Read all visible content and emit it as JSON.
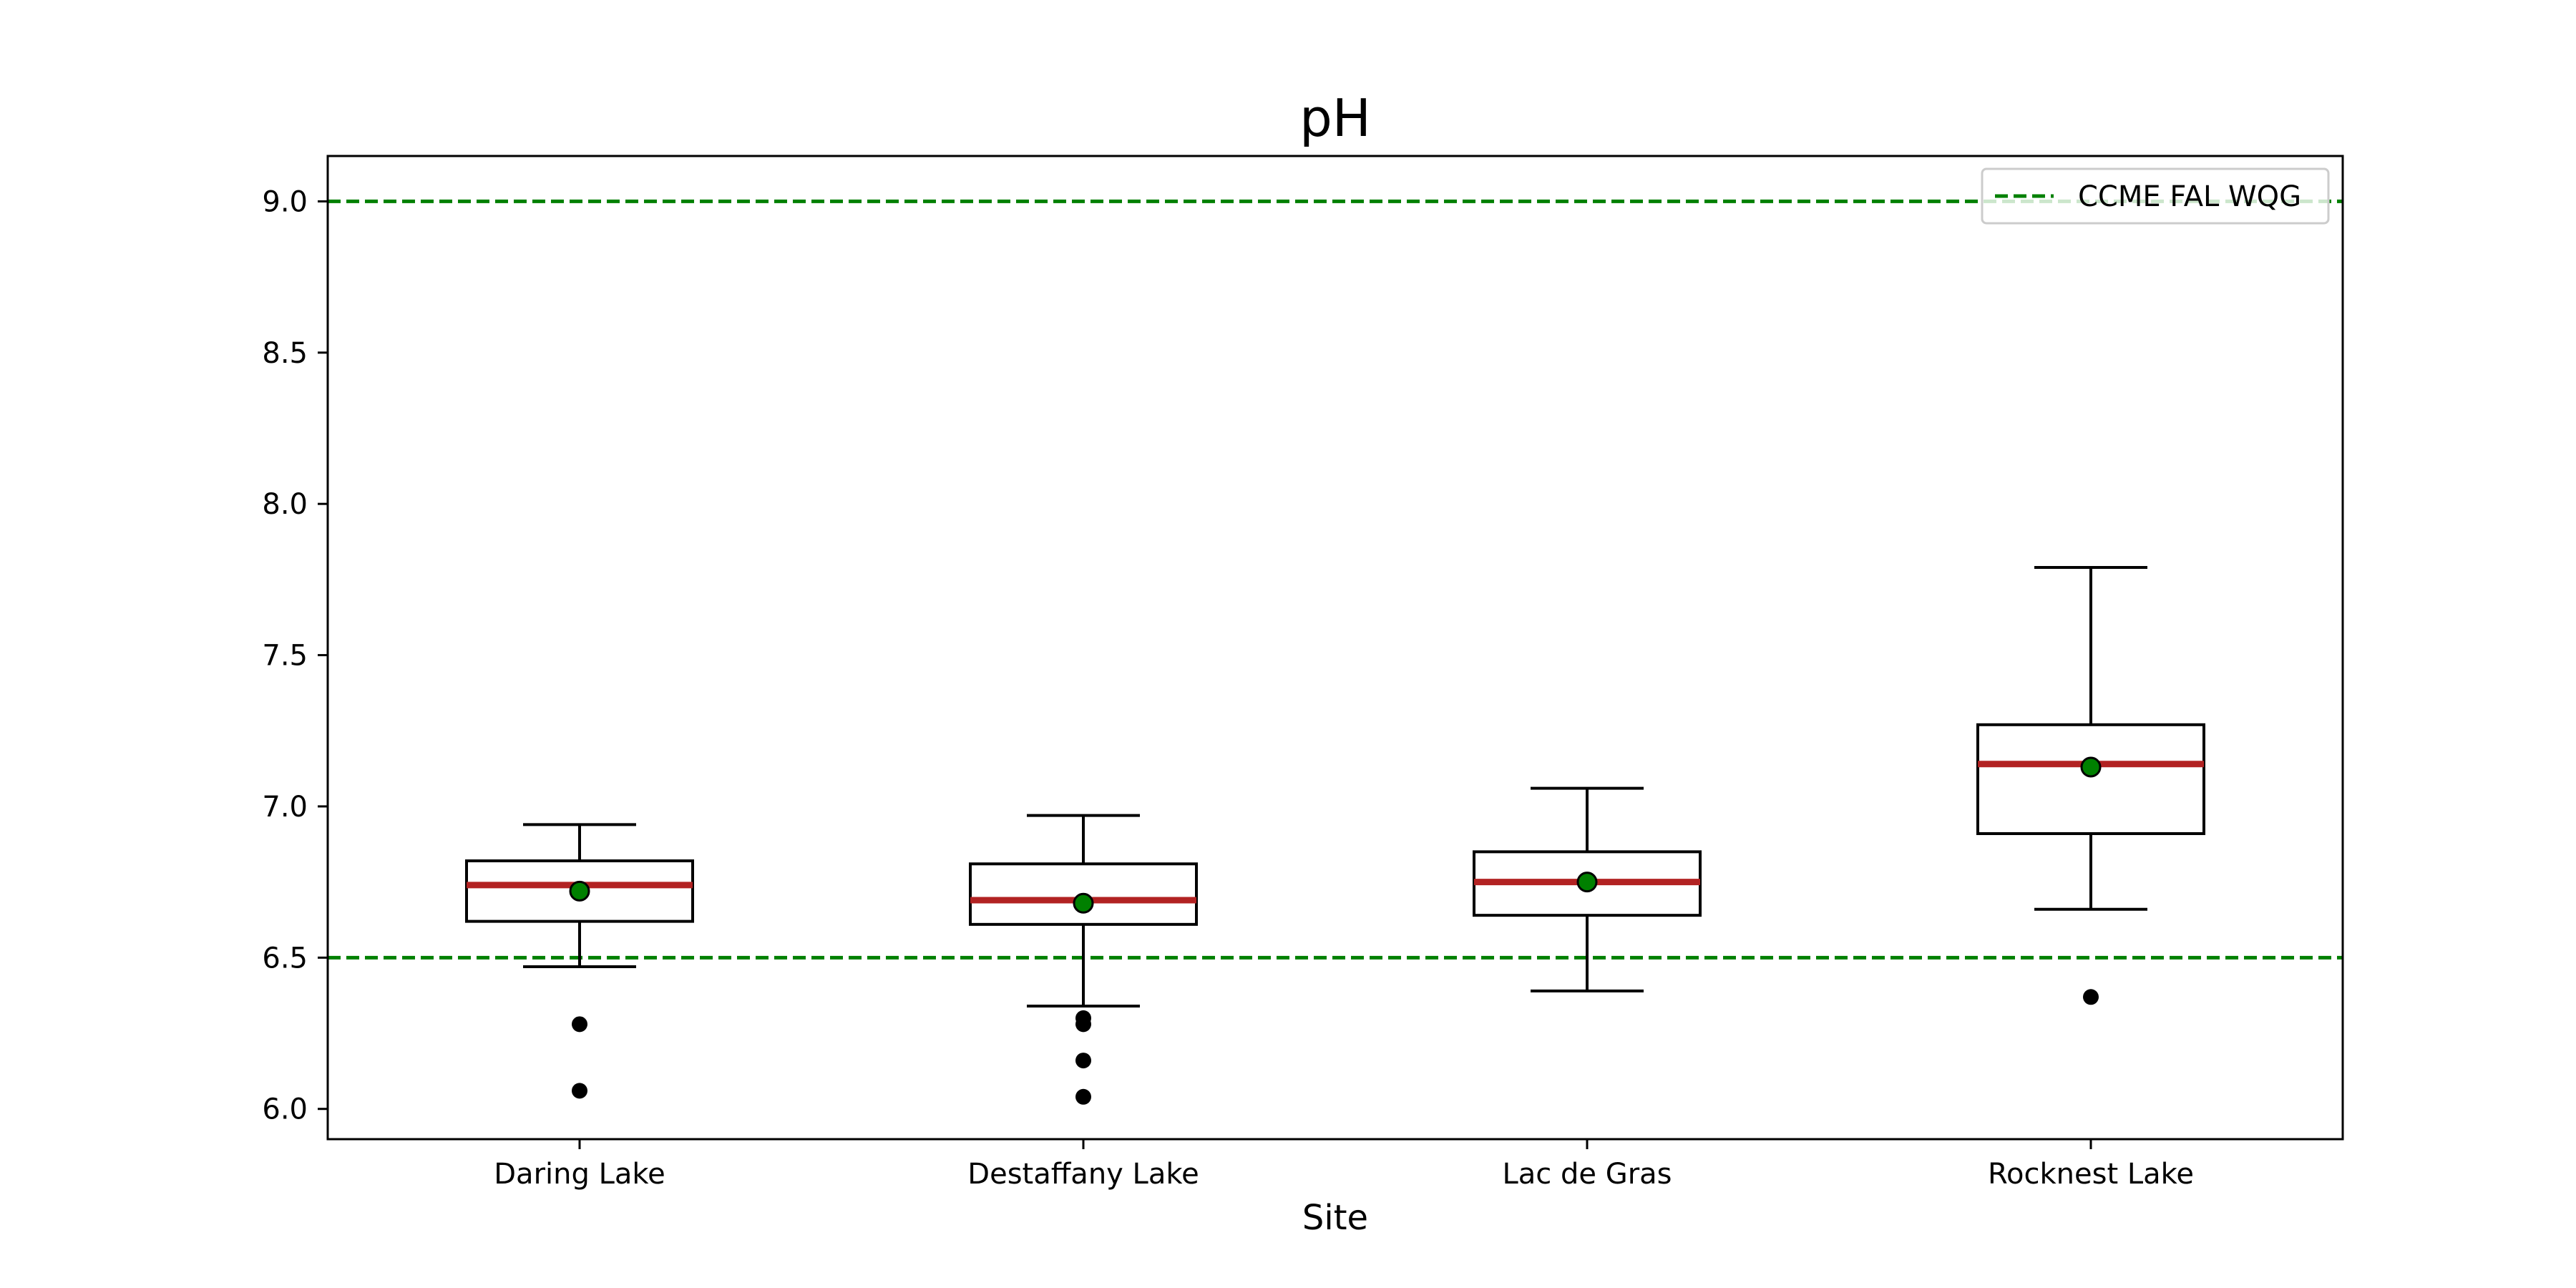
{
  "chart_data": {
    "type": "box",
    "title": "pH",
    "xlabel": "Site",
    "ylabel": "",
    "ylim": [
      5.9,
      9.15
    ],
    "yticks": [
      "6.0",
      "6.5",
      "7.0",
      "7.5",
      "8.0",
      "8.5",
      "9.0"
    ],
    "categories": [
      "Daring Lake",
      "Destaffany Lake",
      "Lac de Gras",
      "Rocknest Lake"
    ],
    "boxes": [
      {
        "category": "Daring Lake",
        "whisker_low": 6.47,
        "q1": 6.62,
        "median": 6.74,
        "q3": 6.82,
        "whisker_high": 6.94,
        "mean": 6.72,
        "outliers": [
          6.28,
          6.06
        ]
      },
      {
        "category": "Destaffany Lake",
        "whisker_low": 6.34,
        "q1": 6.61,
        "median": 6.69,
        "q3": 6.81,
        "whisker_high": 6.97,
        "mean": 6.68,
        "outliers": [
          6.3,
          6.28,
          6.16,
          6.04
        ]
      },
      {
        "category": "Lac de Gras",
        "whisker_low": 6.39,
        "q1": 6.64,
        "median": 6.75,
        "q3": 6.85,
        "whisker_high": 7.06,
        "mean": 6.75,
        "outliers": []
      },
      {
        "category": "Rocknest Lake",
        "whisker_low": 6.66,
        "q1": 6.91,
        "median": 7.14,
        "q3": 7.27,
        "whisker_high": 7.79,
        "mean": 7.13,
        "outliers": [
          6.37
        ]
      }
    ],
    "reference_lines": [
      {
        "value": 9.0,
        "style": "dashed"
      },
      {
        "value": 6.5,
        "style": "dashed"
      }
    ],
    "legend": {
      "label": "CCME FAL WQG",
      "position": "upper-right"
    },
    "colors": {
      "reference": "#008000",
      "median": "#b22222",
      "mean_marker": "#008000",
      "outlier": "#000000",
      "box": "#000000"
    },
    "grid": false
  }
}
